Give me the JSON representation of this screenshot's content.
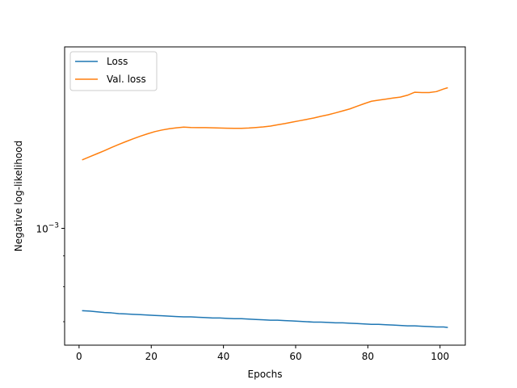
{
  "chart_data": {
    "type": "line",
    "title": "",
    "xlabel": "Epochs",
    "ylabel": "Negative log-likelihood",
    "xlim": [
      -4,
      107
    ],
    "xticks": [
      0,
      20,
      40,
      60,
      80,
      100
    ],
    "y_scale": "log",
    "ylim": [
      0.00064,
      0.002
    ],
    "y_major_ticks": [
      0.001
    ],
    "y_major_tick_labels": [
      "10−3"
    ],
    "grid": false,
    "legend": {
      "placement": "top-left",
      "entries": [
        "Loss",
        "Val. loss"
      ]
    },
    "x": [
      1,
      3,
      5,
      7,
      9,
      11,
      13,
      15,
      17,
      19,
      21,
      23,
      25,
      27,
      29,
      31,
      33,
      35,
      37,
      39,
      41,
      43,
      45,
      47,
      49,
      51,
      53,
      55,
      57,
      59,
      61,
      63,
      65,
      67,
      69,
      71,
      73,
      75,
      77,
      79,
      81,
      83,
      85,
      87,
      89,
      91,
      93,
      95,
      97,
      99,
      101,
      102
    ],
    "series": [
      {
        "name": "Loss",
        "color": "#1f77b4",
        "values": [
          0.00073,
          0.000729,
          0.000727,
          0.000725,
          0.000724,
          0.000722,
          0.000721,
          0.00072,
          0.000719,
          0.000718,
          0.000717,
          0.000716,
          0.000715,
          0.000714,
          0.000713,
          0.000713,
          0.000712,
          0.000711,
          0.00071,
          0.00071,
          0.000709,
          0.000708,
          0.000708,
          0.000707,
          0.000706,
          0.000705,
          0.000704,
          0.000704,
          0.000703,
          0.000702,
          0.000701,
          0.0007,
          0.000699,
          0.000699,
          0.000698,
          0.000697,
          0.000697,
          0.000696,
          0.000695,
          0.000694,
          0.000693,
          0.000693,
          0.000692,
          0.000691,
          0.00069,
          0.000689,
          0.000689,
          0.000688,
          0.000687,
          0.000686,
          0.000686,
          0.000685
        ]
      },
      {
        "name": "Val. loss",
        "color": "#ff7f0e",
        "values": [
          0.0013,
          0.001315,
          0.00133,
          0.001345,
          0.001362,
          0.001378,
          0.001393,
          0.001408,
          0.001422,
          0.001435,
          0.001447,
          0.001456,
          0.001463,
          0.001468,
          0.001472,
          0.00147,
          0.001469,
          0.001469,
          0.001468,
          0.001467,
          0.001466,
          0.001465,
          0.001465,
          0.001467,
          0.00147,
          0.001473,
          0.001478,
          0.001485,
          0.001492,
          0.0015,
          0.001508,
          0.001516,
          0.001524,
          0.001534,
          0.001543,
          0.001554,
          0.001566,
          0.001578,
          0.001594,
          0.00161,
          0.001625,
          0.001632,
          0.001638,
          0.001645,
          0.001651,
          0.001663,
          0.001682,
          0.00168,
          0.00168,
          0.001686,
          0.001703,
          0.00171
        ]
      }
    ]
  }
}
